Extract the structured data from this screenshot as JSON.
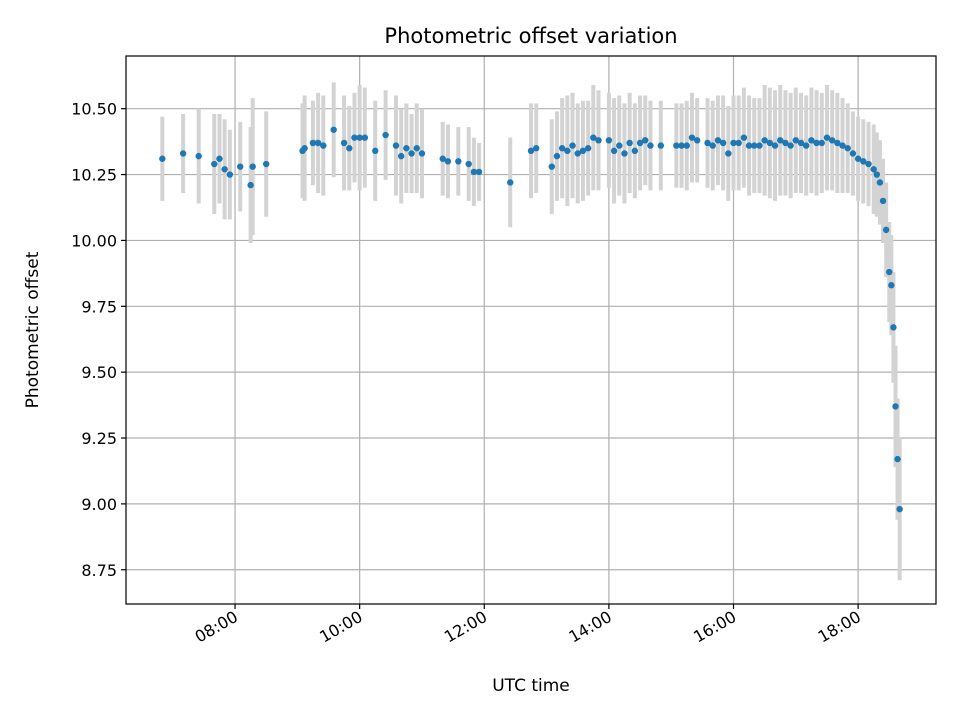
{
  "chart_data": {
    "type": "scatter",
    "title": "Photometric offset variation",
    "xlabel": "UTC time",
    "ylabel": "Photometric offset",
    "x_unit": "hours UTC",
    "xlim": [
      "06:15",
      "19:15"
    ],
    "ylim": [
      8.62,
      10.7
    ],
    "x_ticks": [
      "08:00",
      "10:00",
      "12:00",
      "14:00",
      "16:00",
      "18:00"
    ],
    "y_ticks": [
      "8.75",
      "9.00",
      "9.25",
      "9.50",
      "9.75",
      "10.00",
      "10.25",
      "10.50"
    ],
    "grid": true,
    "colors": {
      "points": "#1f77b4",
      "error_bars": "#d3d3d3",
      "grid": "#b0b0b0"
    },
    "series": [
      {
        "points": [
          {
            "x": "06:50",
            "y": 10.31,
            "err": 0.16
          },
          {
            "x": "07:10",
            "y": 10.33,
            "err": 0.15
          },
          {
            "x": "07:25",
            "y": 10.32,
            "err": 0.18
          },
          {
            "x": "07:40",
            "y": 10.29,
            "err": 0.19
          },
          {
            "x": "07:45",
            "y": 10.31,
            "err": 0.17
          },
          {
            "x": "07:50",
            "y": 10.27,
            "err": 0.19
          },
          {
            "x": "07:55",
            "y": 10.25,
            "err": 0.17
          },
          {
            "x": "08:05",
            "y": 10.28,
            "err": 0.17
          },
          {
            "x": "08:15",
            "y": 10.21,
            "err": 0.22
          },
          {
            "x": "08:17",
            "y": 10.28,
            "err": 0.26
          },
          {
            "x": "08:30",
            "y": 10.29,
            "err": 0.2
          },
          {
            "x": "09:05",
            "y": 10.34,
            "err": 0.18
          },
          {
            "x": "09:07",
            "y": 10.35,
            "err": 0.2
          },
          {
            "x": "09:15",
            "y": 10.37,
            "err": 0.16
          },
          {
            "x": "09:20",
            "y": 10.37,
            "err": 0.19
          },
          {
            "x": "09:25",
            "y": 10.36,
            "err": 0.19
          },
          {
            "x": "09:35",
            "y": 10.42,
            "err": 0.18
          },
          {
            "x": "09:45",
            "y": 10.37,
            "err": 0.18
          },
          {
            "x": "09:50",
            "y": 10.35,
            "err": 0.16
          },
          {
            "x": "09:55",
            "y": 10.39,
            "err": 0.17
          },
          {
            "x": "10:00",
            "y": 10.39,
            "err": 0.2
          },
          {
            "x": "10:05",
            "y": 10.39,
            "err": 0.19
          },
          {
            "x": "10:15",
            "y": 10.34,
            "err": 0.19
          },
          {
            "x": "10:25",
            "y": 10.4,
            "err": 0.17
          },
          {
            "x": "10:35",
            "y": 10.36,
            "err": 0.19
          },
          {
            "x": "10:40",
            "y": 10.32,
            "err": 0.18
          },
          {
            "x": "10:45",
            "y": 10.35,
            "err": 0.17
          },
          {
            "x": "10:50",
            "y": 10.33,
            "err": 0.15
          },
          {
            "x": "10:55",
            "y": 10.35,
            "err": 0.17
          },
          {
            "x": "11:00",
            "y": 10.33,
            "err": 0.17
          },
          {
            "x": "11:20",
            "y": 10.31,
            "err": 0.14
          },
          {
            "x": "11:25",
            "y": 10.3,
            "err": 0.14
          },
          {
            "x": "11:35",
            "y": 10.3,
            "err": 0.13
          },
          {
            "x": "11:45",
            "y": 10.29,
            "err": 0.14
          },
          {
            "x": "11:50",
            "y": 10.26,
            "err": 0.13
          },
          {
            "x": "11:55",
            "y": 10.26,
            "err": 0.11
          },
          {
            "x": "12:25",
            "y": 10.22,
            "err": 0.17
          },
          {
            "x": "12:45",
            "y": 10.34,
            "err": 0.18
          },
          {
            "x": "12:50",
            "y": 10.35,
            "err": 0.17
          },
          {
            "x": "13:05",
            "y": 10.28,
            "err": 0.18
          },
          {
            "x": "13:10",
            "y": 10.32,
            "err": 0.17
          },
          {
            "x": "13:15",
            "y": 10.35,
            "err": 0.19
          },
          {
            "x": "13:20",
            "y": 10.34,
            "err": 0.21
          },
          {
            "x": "13:25",
            "y": 10.36,
            "err": 0.2
          },
          {
            "x": "13:30",
            "y": 10.33,
            "err": 0.19
          },
          {
            "x": "13:35",
            "y": 10.34,
            "err": 0.19
          },
          {
            "x": "13:40",
            "y": 10.35,
            "err": 0.18
          },
          {
            "x": "13:45",
            "y": 10.39,
            "err": 0.2
          },
          {
            "x": "13:50",
            "y": 10.38,
            "err": 0.19
          },
          {
            "x": "14:00",
            "y": 10.38,
            "err": 0.18
          },
          {
            "x": "14:05",
            "y": 10.34,
            "err": 0.2
          },
          {
            "x": "14:10",
            "y": 10.36,
            "err": 0.19
          },
          {
            "x": "14:15",
            "y": 10.33,
            "err": 0.19
          },
          {
            "x": "14:20",
            "y": 10.37,
            "err": 0.19
          },
          {
            "x": "14:25",
            "y": 10.34,
            "err": 0.18
          },
          {
            "x": "14:30",
            "y": 10.37,
            "err": 0.18
          },
          {
            "x": "14:35",
            "y": 10.38,
            "err": 0.17
          },
          {
            "x": "14:40",
            "y": 10.36,
            "err": 0.17
          },
          {
            "x": "14:50",
            "y": 10.36,
            "err": 0.17
          },
          {
            "x": "15:05",
            "y": 10.36,
            "err": 0.16
          },
          {
            "x": "15:10",
            "y": 10.36,
            "err": 0.16
          },
          {
            "x": "15:15",
            "y": 10.36,
            "err": 0.17
          },
          {
            "x": "15:20",
            "y": 10.39,
            "err": 0.17
          },
          {
            "x": "15:25",
            "y": 10.38,
            "err": 0.16
          },
          {
            "x": "15:35",
            "y": 10.37,
            "err": 0.17
          },
          {
            "x": "15:40",
            "y": 10.36,
            "err": 0.17
          },
          {
            "x": "15:45",
            "y": 10.38,
            "err": 0.17
          },
          {
            "x": "15:50",
            "y": 10.37,
            "err": 0.18
          },
          {
            "x": "15:55",
            "y": 10.33,
            "err": 0.18
          },
          {
            "x": "16:00",
            "y": 10.37,
            "err": 0.18
          },
          {
            "x": "16:05",
            "y": 10.37,
            "err": 0.18
          },
          {
            "x": "16:10",
            "y": 10.39,
            "err": 0.19
          },
          {
            "x": "16:15",
            "y": 10.36,
            "err": 0.19
          },
          {
            "x": "16:20",
            "y": 10.36,
            "err": 0.18
          },
          {
            "x": "16:25",
            "y": 10.36,
            "err": 0.18
          },
          {
            "x": "16:30",
            "y": 10.38,
            "err": 0.21
          },
          {
            "x": "16:35",
            "y": 10.37,
            "err": 0.21
          },
          {
            "x": "16:40",
            "y": 10.36,
            "err": 0.21
          },
          {
            "x": "16:45",
            "y": 10.38,
            "err": 0.21
          },
          {
            "x": "16:50",
            "y": 10.37,
            "err": 0.2
          },
          {
            "x": "16:55",
            "y": 10.36,
            "err": 0.2
          },
          {
            "x": "17:00",
            "y": 10.38,
            "err": 0.2
          },
          {
            "x": "17:05",
            "y": 10.37,
            "err": 0.19
          },
          {
            "x": "17:10",
            "y": 10.36,
            "err": 0.19
          },
          {
            "x": "17:15",
            "y": 10.38,
            "err": 0.2
          },
          {
            "x": "17:20",
            "y": 10.37,
            "err": 0.2
          },
          {
            "x": "17:25",
            "y": 10.37,
            "err": 0.19
          },
          {
            "x": "17:30",
            "y": 10.39,
            "err": 0.2
          },
          {
            "x": "17:35",
            "y": 10.38,
            "err": 0.19
          },
          {
            "x": "17:40",
            "y": 10.37,
            "err": 0.19
          },
          {
            "x": "17:45",
            "y": 10.36,
            "err": 0.18
          },
          {
            "x": "17:50",
            "y": 10.35,
            "err": 0.17
          },
          {
            "x": "17:55",
            "y": 10.33,
            "err": 0.16
          },
          {
            "x": "18:00",
            "y": 10.31,
            "err": 0.16
          },
          {
            "x": "18:05",
            "y": 10.3,
            "err": 0.16
          },
          {
            "x": "18:10",
            "y": 10.29,
            "err": 0.16
          },
          {
            "x": "18:15",
            "y": 10.27,
            "err": 0.17
          },
          {
            "x": "18:18",
            "y": 10.25,
            "err": 0.16
          },
          {
            "x": "18:21",
            "y": 10.22,
            "err": 0.16
          },
          {
            "x": "18:24",
            "y": 10.15,
            "err": 0.16
          },
          {
            "x": "18:27",
            "y": 10.04,
            "err": 0.18
          },
          {
            "x": "18:30",
            "y": 9.88,
            "err": 0.19
          },
          {
            "x": "18:32",
            "y": 9.83,
            "err": 0.19
          },
          {
            "x": "18:34",
            "y": 9.67,
            "err": 0.21
          },
          {
            "x": "18:36",
            "y": 9.37,
            "err": 0.23
          },
          {
            "x": "18:38",
            "y": 9.17,
            "err": 0.23
          },
          {
            "x": "18:40",
            "y": 8.98,
            "err": 0.27
          }
        ]
      }
    ]
  }
}
